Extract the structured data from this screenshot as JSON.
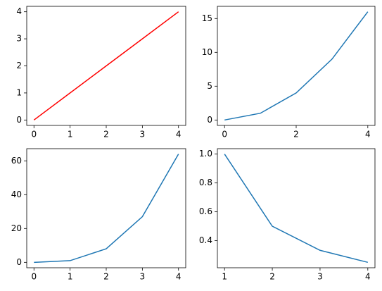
{
  "chart_data": [
    {
      "type": "line",
      "x": [
        0,
        1,
        2,
        3,
        4
      ],
      "series": [
        {
          "color": "#ff0000",
          "values": [
            0,
            1,
            2,
            3,
            4
          ]
        }
      ],
      "xlim": [
        -0.2,
        4.2
      ],
      "ylim": [
        -0.2,
        4.2
      ],
      "xticks": [
        0,
        1,
        2,
        3,
        4
      ],
      "yticks": [
        0,
        1,
        2,
        3,
        4
      ]
    },
    {
      "type": "line",
      "x": [
        0,
        1,
        2,
        3,
        4
      ],
      "series": [
        {
          "color": "#1f77b4",
          "values": [
            0,
            1,
            4,
            9,
            16
          ]
        }
      ],
      "xlim": [
        -0.2,
        4.2
      ],
      "ylim": [
        -0.8,
        16.8
      ],
      "xticks": [
        0,
        2,
        4
      ],
      "yticks": [
        0,
        5,
        10,
        15
      ]
    },
    {
      "type": "line",
      "x": [
        0,
        1,
        2,
        3,
        4
      ],
      "series": [
        {
          "color": "#1f77b4",
          "values": [
            0,
            1,
            8,
            27,
            64
          ]
        }
      ],
      "xlim": [
        -0.2,
        4.2
      ],
      "ylim": [
        -3.2,
        67.2
      ],
      "xticks": [
        0,
        1,
        2,
        3,
        4
      ],
      "yticks": [
        0,
        20,
        40,
        60
      ]
    },
    {
      "type": "line",
      "x": [
        1,
        2,
        3,
        4
      ],
      "series": [
        {
          "color": "#1f77b4",
          "values": [
            1,
            0.5,
            0.3333,
            0.25
          ]
        }
      ],
      "xlim": [
        0.85,
        4.15
      ],
      "ylim": [
        0.2125,
        1.0375
      ],
      "xticks": [
        1,
        2,
        3,
        4
      ],
      "yticks": [
        0.4,
        0.6,
        0.8,
        {
          "value": 1.0,
          "label": "1.0"
        }
      ]
    }
  ]
}
